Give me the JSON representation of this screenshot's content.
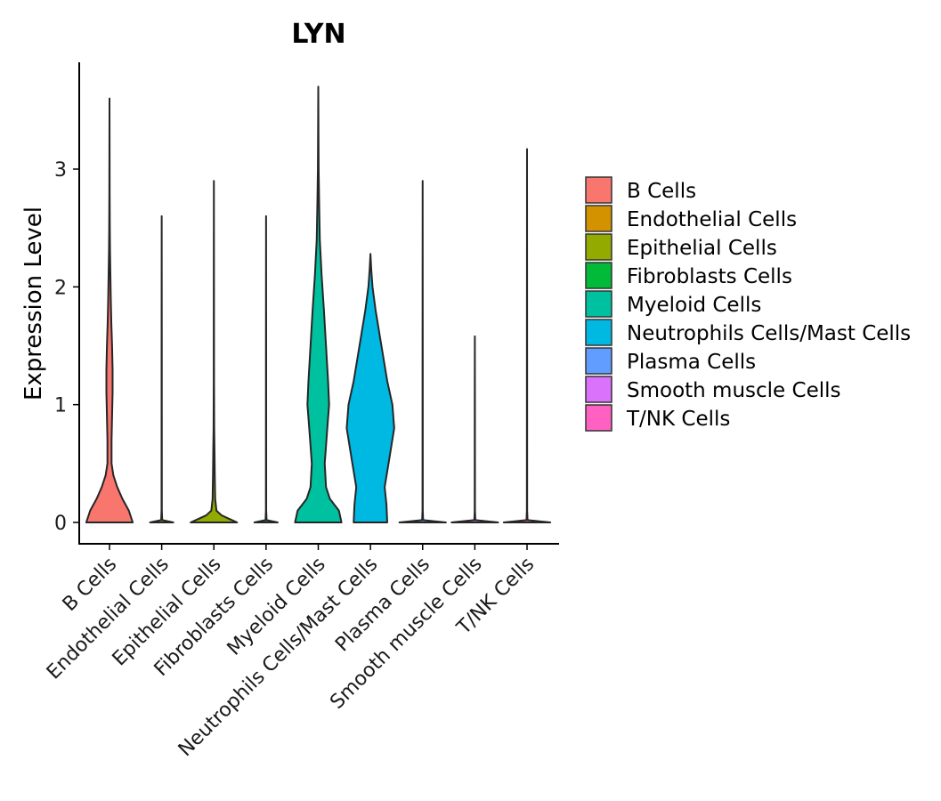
{
  "chart_data": {
    "type": "violin",
    "title": "LYN",
    "xlabel": "",
    "ylabel": "Expression Level",
    "ylim": [
      -0.2,
      3.9
    ],
    "yticks": [
      0,
      1,
      2,
      3
    ],
    "grid": false,
    "legend_position": "right",
    "categories": [
      "B Cells",
      "Endothelial Cells",
      "Epithelial Cells",
      "Fibroblasts Cells",
      "Myeloid Cells",
      "Neutrophils Cells/Mast Cells",
      "Plasma Cells",
      "Smooth muscle Cells",
      "T/NK Cells"
    ],
    "colors": [
      "#F8766D",
      "#D39200",
      "#93AA00",
      "#00BA38",
      "#00C19F",
      "#00B9E3",
      "#619CFF",
      "#DB72FB",
      "#FF61C3"
    ],
    "series": [
      {
        "name": "B Cells",
        "max": 3.6,
        "density": [
          [
            0.0,
            0.9
          ],
          [
            0.1,
            0.75
          ],
          [
            0.2,
            0.5
          ],
          [
            0.3,
            0.3
          ],
          [
            0.4,
            0.15
          ],
          [
            0.5,
            0.08
          ],
          [
            0.7,
            0.08
          ],
          [
            0.9,
            0.1
          ],
          [
            1.1,
            0.12
          ],
          [
            1.3,
            0.12
          ],
          [
            1.5,
            0.1
          ],
          [
            1.7,
            0.07
          ],
          [
            1.9,
            0.05
          ],
          [
            2.1,
            0.035
          ],
          [
            2.3,
            0.02
          ],
          [
            2.5,
            0.012
          ],
          [
            2.8,
            0.006
          ],
          [
            3.2,
            0.003
          ],
          [
            3.6,
            0.0
          ]
        ]
      },
      {
        "name": "Endothelial Cells",
        "max": 2.6,
        "density": [
          [
            0.0,
            0.45
          ],
          [
            0.02,
            0.02
          ],
          [
            0.1,
            0.006
          ],
          [
            1.5,
            0.004
          ],
          [
            2.6,
            0.0
          ]
        ]
      },
      {
        "name": "Epithelial Cells",
        "max": 2.9,
        "density": [
          [
            0.0,
            0.9
          ],
          [
            0.03,
            0.6
          ],
          [
            0.06,
            0.3
          ],
          [
            0.1,
            0.1
          ],
          [
            0.2,
            0.05
          ],
          [
            0.4,
            0.035
          ],
          [
            0.6,
            0.025
          ],
          [
            0.8,
            0.012
          ],
          [
            1.2,
            0.006
          ],
          [
            2.0,
            0.004
          ],
          [
            2.9,
            0.0
          ]
        ]
      },
      {
        "name": "Fibroblasts Cells",
        "max": 2.6,
        "density": [
          [
            0.0,
            0.45
          ],
          [
            0.02,
            0.02
          ],
          [
            0.1,
            0.006
          ],
          [
            1.5,
            0.004
          ],
          [
            2.6,
            0.0
          ]
        ]
      },
      {
        "name": "Myeloid Cells",
        "max": 3.7,
        "density": [
          [
            0.0,
            0.9
          ],
          [
            0.1,
            0.8
          ],
          [
            0.2,
            0.45
          ],
          [
            0.3,
            0.3
          ],
          [
            0.5,
            0.25
          ],
          [
            0.8,
            0.35
          ],
          [
            1.0,
            0.42
          ],
          [
            1.2,
            0.38
          ],
          [
            1.5,
            0.3
          ],
          [
            1.8,
            0.22
          ],
          [
            2.1,
            0.13
          ],
          [
            2.4,
            0.06
          ],
          [
            2.7,
            0.035
          ],
          [
            3.0,
            0.015
          ],
          [
            3.3,
            0.008
          ],
          [
            3.7,
            0.0
          ]
        ]
      },
      {
        "name": "Neutrophils Cells/Mast Cells",
        "max": 2.28,
        "density": [
          [
            0.0,
            0.65
          ],
          [
            0.15,
            0.62
          ],
          [
            0.3,
            0.55
          ],
          [
            0.5,
            0.7
          ],
          [
            0.8,
            0.92
          ],
          [
            1.0,
            0.85
          ],
          [
            1.2,
            0.65
          ],
          [
            1.4,
            0.5
          ],
          [
            1.6,
            0.35
          ],
          [
            1.8,
            0.2
          ],
          [
            2.0,
            0.08
          ],
          [
            2.15,
            0.03
          ],
          [
            2.28,
            0.0
          ]
        ]
      },
      {
        "name": "Plasma Cells",
        "max": 2.9,
        "density": [
          [
            0.0,
            0.9
          ],
          [
            0.02,
            0.02
          ],
          [
            0.1,
            0.006
          ],
          [
            1.5,
            0.004
          ],
          [
            2.9,
            0.0
          ]
        ]
      },
      {
        "name": "Smooth muscle Cells",
        "max": 1.58,
        "density": [
          [
            0.0,
            0.9
          ],
          [
            0.02,
            0.02
          ],
          [
            0.1,
            0.006
          ],
          [
            1.0,
            0.004
          ],
          [
            1.58,
            0.0
          ]
        ]
      },
      {
        "name": "T/NK Cells",
        "max": 3.17,
        "density": [
          [
            0.0,
            0.9
          ],
          [
            0.02,
            0.02
          ],
          [
            0.1,
            0.006
          ],
          [
            1.5,
            0.004
          ],
          [
            3.17,
            0.0
          ]
        ]
      }
    ]
  }
}
